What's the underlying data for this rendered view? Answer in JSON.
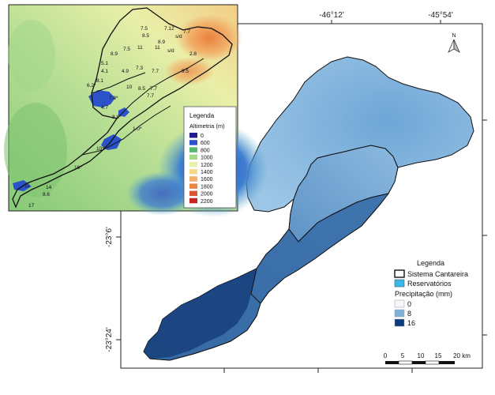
{
  "main_map": {
    "top_coordinate_labels": [
      "-46°12'",
      "-45°54'"
    ],
    "left_coordinate_labels": [
      "-23°6'",
      "-23°24'"
    ],
    "north_arrow_letter": "N"
  },
  "main_legend": {
    "title": "Legenda",
    "items": [
      "Sistema Cantareira",
      "Reservatórios"
    ],
    "precip_title": "Precipitação (mm)",
    "precip_classes": [
      "0",
      "8",
      "16"
    ],
    "colors": {
      "sistema_cantareira": "#ffffff",
      "reservatorios": "#3bb7ea",
      "precip_0": "#f4f8fc",
      "precip_8": "#7eb0d8",
      "precip_16": "#0b3d7a"
    }
  },
  "scale_bar": {
    "labels": [
      "0",
      "5",
      "10",
      "15",
      "20 km"
    ]
  },
  "inset_map": {
    "point_labels": [
      "7.5",
      "7.12",
      "7.7",
      "8.5",
      "s/d",
      "7.5",
      "11",
      "8.9",
      "11",
      "s/d",
      "2.8",
      "8.9",
      "5.1",
      "4.1",
      "4.9",
      "7.3",
      "9.5",
      "8.1",
      "7.7",
      "6.2*",
      "10",
      "8.5",
      "7.7",
      "7.7",
      "4.7",
      "7.8*",
      "8.8*",
      "1.0*",
      "10*",
      "16*",
      "11",
      "14",
      "8.6",
      "17"
    ],
    "legend": {
      "title": "Legenda",
      "subtitle": "Altimetria (m)",
      "classes": [
        "0",
        "600",
        "800",
        "1000",
        "1200",
        "1400",
        "1600",
        "1800",
        "2000",
        "2200"
      ],
      "colors": [
        "#1f1c8f",
        "#2b52c8",
        "#58b86c",
        "#a7d98a",
        "#e9f1a6",
        "#f4d98c",
        "#f2b06a",
        "#e9873f",
        "#dc5735",
        "#c8241f"
      ]
    }
  }
}
